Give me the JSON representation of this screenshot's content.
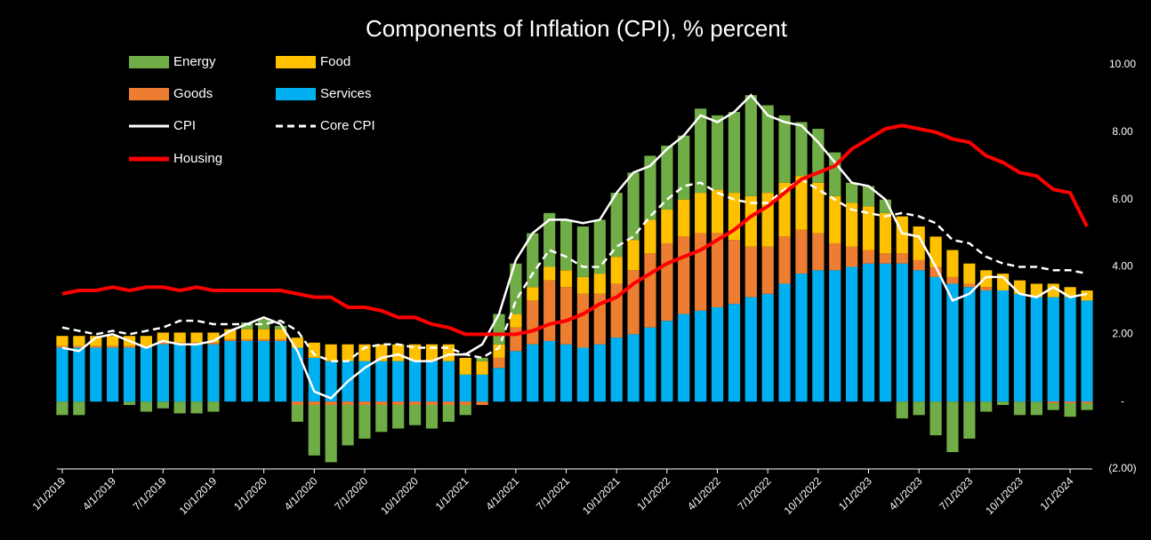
{
  "chart_data": {
    "type": "bar",
    "title": "Components of Inflation (CPI), % percent",
    "categories": [
      "1/1/2019",
      null,
      null,
      "4/1/2019",
      null,
      null,
      "7/1/2019",
      null,
      null,
      "10/1/2019",
      null,
      null,
      "1/1/2020",
      null,
      null,
      "4/1/2020",
      null,
      null,
      "7/1/2020",
      null,
      null,
      "10/1/2020",
      null,
      null,
      "1/1/2021",
      null,
      null,
      "4/1/2021",
      null,
      null,
      "7/1/2021",
      null,
      null,
      "10/1/2021",
      null,
      null,
      "1/1/2022",
      null,
      null,
      "4/1/2022",
      null,
      null,
      "7/1/2022",
      null,
      null,
      "10/1/2022",
      null,
      null,
      "1/1/2023",
      null,
      null,
      "4/1/2023",
      null,
      null,
      "7/1/2023",
      null,
      null,
      "10/1/2023",
      null,
      null,
      "1/1/2024",
      null
    ],
    "ylim": [
      -2,
      10
    ],
    "yticks": [
      {
        "value": 10,
        "label": "10.00"
      },
      {
        "value": 8,
        "label": "8.00"
      },
      {
        "value": 6,
        "label": "6.00"
      },
      {
        "value": 4,
        "label": "4.00"
      },
      {
        "value": 2,
        "label": "2.00"
      },
      {
        "value": 0,
        "label": "-"
      },
      {
        "value": -2,
        "label": "(2.00)"
      }
    ],
    "grid": false,
    "series": [
      {
        "name": "Energy",
        "type": "bar",
        "color": "#70ad47",
        "values": [
          -0.4,
          -0.4,
          0.0,
          0.0,
          -0.1,
          -0.3,
          -0.2,
          -0.35,
          -0.35,
          -0.3,
          0.0,
          0.2,
          0.3,
          0.1,
          -0.5,
          -1.5,
          -1.7,
          -1.2,
          -1.0,
          -0.8,
          -0.7,
          -0.6,
          -0.7,
          -0.5,
          -0.3,
          0.1,
          0.9,
          1.5,
          1.6,
          1.6,
          1.5,
          1.5,
          1.6,
          1.9,
          2.0,
          1.9,
          1.9,
          1.9,
          2.5,
          2.2,
          2.4,
          3.0,
          2.6,
          2.0,
          1.6,
          1.6,
          1.3,
          0.6,
          0.6,
          0.4,
          -0.5,
          -0.4,
          -1.0,
          -1.5,
          -1.1,
          -0.3,
          -0.1,
          -0.4,
          -0.4,
          -0.2,
          -0.4,
          -0.2
        ]
      },
      {
        "name": "Food",
        "type": "bar",
        "color": "#ffc000",
        "values": [
          0.3,
          0.3,
          0.3,
          0.3,
          0.3,
          0.3,
          0.3,
          0.3,
          0.3,
          0.3,
          0.3,
          0.3,
          0.3,
          0.3,
          0.3,
          0.45,
          0.5,
          0.5,
          0.5,
          0.5,
          0.5,
          0.5,
          0.5,
          0.5,
          0.5,
          0.4,
          0.4,
          0.4,
          0.4,
          0.4,
          0.5,
          0.5,
          0.6,
          0.8,
          0.9,
          1.0,
          1.0,
          1.1,
          1.2,
          1.3,
          1.4,
          1.5,
          1.6,
          1.6,
          1.6,
          1.5,
          1.4,
          1.3,
          1.3,
          1.2,
          1.1,
          1.0,
          0.9,
          0.8,
          0.6,
          0.5,
          0.5,
          0.4,
          0.4,
          0.4,
          0.3,
          0.3
        ]
      },
      {
        "name": "Goods",
        "type": "bar",
        "color": "#ed7d31",
        "values": [
          0.05,
          0.05,
          0.05,
          0.05,
          0.05,
          0.05,
          0.05,
          0.05,
          0.05,
          0.05,
          0.05,
          0.05,
          0.05,
          0.05,
          -0.1,
          -0.1,
          -0.1,
          -0.1,
          -0.1,
          -0.1,
          -0.1,
          -0.1,
          -0.1,
          -0.1,
          -0.1,
          -0.1,
          0.3,
          0.7,
          1.3,
          1.8,
          1.7,
          1.6,
          1.5,
          1.6,
          1.9,
          2.2,
          2.3,
          2.3,
          2.3,
          2.2,
          1.9,
          1.5,
          1.4,
          1.4,
          1.3,
          1.1,
          0.8,
          0.6,
          0.4,
          0.3,
          0.3,
          0.3,
          0.3,
          0.2,
          0.1,
          0.1,
          0.0,
          0.0,
          0.0,
          -0.05,
          -0.05,
          -0.05
        ]
      },
      {
        "name": "Services",
        "type": "bar",
        "color": "#00b0f0",
        "values": [
          1.6,
          1.6,
          1.6,
          1.6,
          1.6,
          1.6,
          1.7,
          1.7,
          1.7,
          1.7,
          1.8,
          1.8,
          1.8,
          1.8,
          1.6,
          1.3,
          1.2,
          1.2,
          1.2,
          1.2,
          1.2,
          1.2,
          1.2,
          1.2,
          0.8,
          0.8,
          1.0,
          1.5,
          1.7,
          1.8,
          1.7,
          1.6,
          1.7,
          1.9,
          2.0,
          2.2,
          2.4,
          2.6,
          2.7,
          2.8,
          2.9,
          3.1,
          3.2,
          3.5,
          3.8,
          3.9,
          3.9,
          4.0,
          4.1,
          4.1,
          4.1,
          3.9,
          3.7,
          3.5,
          3.4,
          3.3,
          3.3,
          3.2,
          3.1,
          3.1,
          3.1,
          3.0
        ]
      },
      {
        "name": "CPI",
        "type": "line",
        "color": "#ffffff",
        "dash": false,
        "values": [
          1.6,
          1.5,
          1.9,
          2.0,
          1.8,
          1.6,
          1.8,
          1.7,
          1.7,
          1.8,
          2.1,
          2.3,
          2.5,
          2.3,
          1.5,
          0.3,
          0.1,
          0.6,
          1.0,
          1.3,
          1.4,
          1.2,
          1.2,
          1.4,
          1.4,
          1.7,
          2.6,
          4.2,
          5.0,
          5.4,
          5.4,
          5.3,
          5.4,
          6.2,
          6.8,
          7.0,
          7.5,
          7.9,
          8.5,
          8.3,
          8.6,
          9.1,
          8.5,
          8.3,
          8.2,
          7.7,
          7.1,
          6.5,
          6.4,
          6.0,
          5.0,
          4.9,
          4.0,
          3.0,
          3.2,
          3.7,
          3.7,
          3.2,
          3.1,
          3.4,
          3.1,
          3.2
        ]
      },
      {
        "name": "Core CPI",
        "type": "line",
        "color": "#ffffff",
        "dash": true,
        "values": [
          2.2,
          2.1,
          2.0,
          2.1,
          2.0,
          2.1,
          2.2,
          2.4,
          2.4,
          2.3,
          2.3,
          2.3,
          2.3,
          2.4,
          2.1,
          1.4,
          1.2,
          1.2,
          1.6,
          1.7,
          1.7,
          1.6,
          1.6,
          1.6,
          1.4,
          1.3,
          1.6,
          3.0,
          3.8,
          4.5,
          4.3,
          4.0,
          4.0,
          4.6,
          4.9,
          5.5,
          6.0,
          6.4,
          6.5,
          6.2,
          6.0,
          5.9,
          5.9,
          6.3,
          6.6,
          6.3,
          6.0,
          5.7,
          5.6,
          5.5,
          5.6,
          5.5,
          5.3,
          4.8,
          4.7,
          4.3,
          4.1,
          4.0,
          4.0,
          3.9,
          3.9,
          3.8
        ]
      },
      {
        "name": "Housing",
        "type": "line",
        "color": "#ff0000",
        "dash": false,
        "values": [
          3.2,
          3.3,
          3.3,
          3.4,
          3.3,
          3.4,
          3.4,
          3.3,
          3.4,
          3.3,
          3.3,
          3.3,
          3.3,
          3.3,
          3.2,
          3.1,
          3.1,
          2.8,
          2.8,
          2.7,
          2.5,
          2.5,
          2.3,
          2.2,
          2.0,
          2.0,
          2.0,
          2.0,
          2.1,
          2.3,
          2.4,
          2.6,
          2.9,
          3.1,
          3.5,
          3.8,
          4.1,
          4.3,
          4.5,
          4.8,
          5.1,
          5.5,
          5.8,
          6.2,
          6.6,
          6.8,
          7.0,
          7.5,
          7.8,
          8.1,
          8.2,
          8.1,
          8.0,
          7.8,
          7.7,
          7.3,
          7.1,
          6.8,
          6.7,
          6.3,
          6.2,
          5.2
        ]
      }
    ]
  }
}
